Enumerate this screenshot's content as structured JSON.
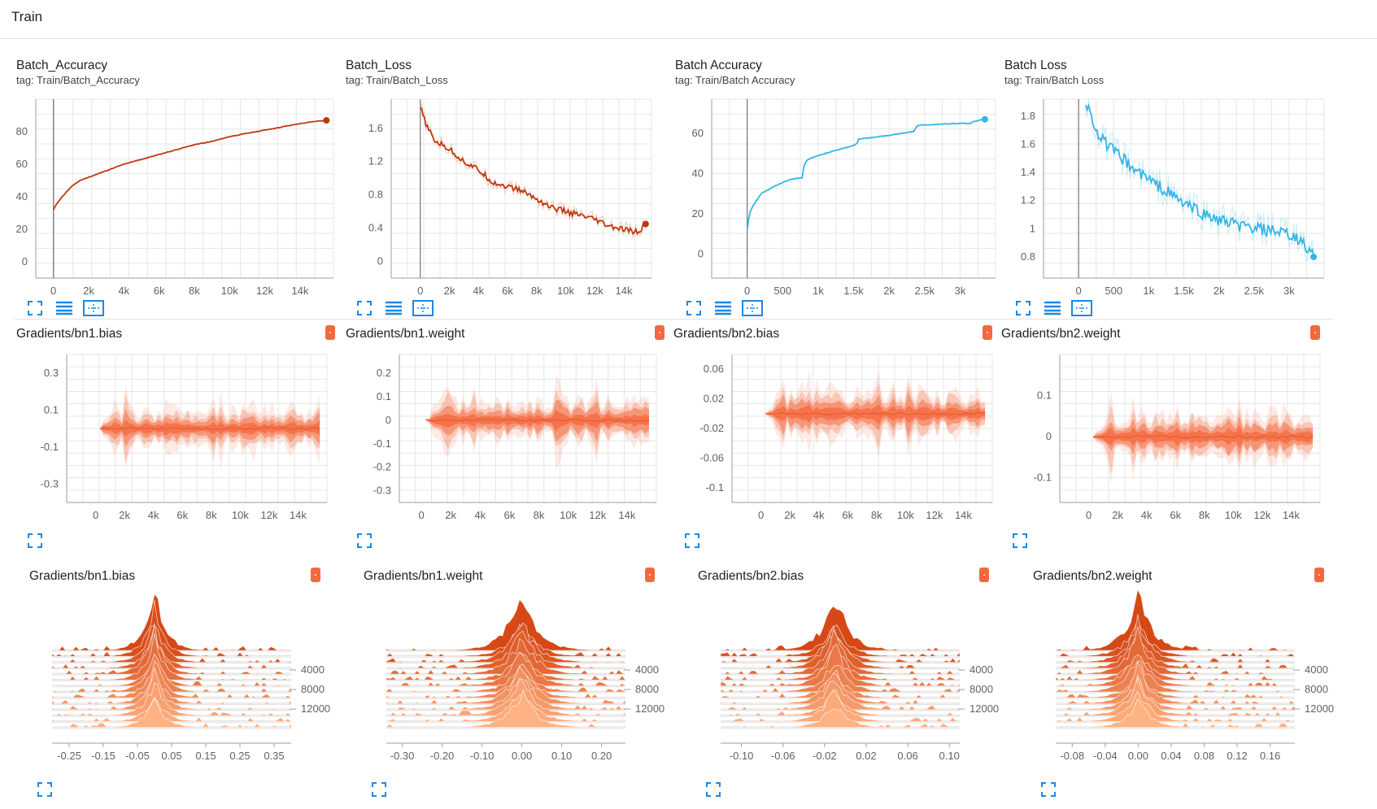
{
  "page": {
    "title": "Train"
  },
  "colors": {
    "accent": "#1e88e5",
    "scalar_orange": "#c0360c",
    "scalar_blue": "#33b5e5",
    "hist": "#f4683e"
  },
  "chart_data": [
    {
      "type": "line",
      "title": "Batch_Accuracy",
      "tag": "tag: Train/Batch_Accuracy",
      "xlim": [
        -1000,
        15900
      ],
      "ylim": [
        -10,
        100
      ],
      "xticks": [
        0,
        2000,
        4000,
        6000,
        8000,
        10000,
        12000,
        14000
      ],
      "xtick_labels": [
        "0",
        "2k",
        "4k",
        "6k",
        "8k",
        "10k",
        "12k",
        "14k"
      ],
      "yticks": [
        0,
        20,
        40,
        60,
        80
      ],
      "ytick_labels": [
        "0",
        "20",
        "40",
        "60",
        "80"
      ],
      "color": "#c0360c",
      "x": [
        0,
        200,
        500,
        1000,
        1500,
        2000,
        3000,
        4000,
        5000,
        6000,
        7000,
        8000,
        9000,
        10000,
        11000,
        12000,
        13000,
        14000,
        15000,
        15500
      ],
      "y": [
        32,
        36,
        40,
        46,
        50,
        52,
        56,
        60,
        63,
        66,
        69,
        72,
        74,
        77,
        79,
        81,
        83,
        85,
        86.5,
        87
      ]
    },
    {
      "type": "line",
      "title": "Batch_Loss",
      "tag": "tag: Train/Batch_Loss",
      "xlim": [
        -2000,
        15900
      ],
      "ylim": [
        -0.2,
        1.95
      ],
      "xticks": [
        0,
        2000,
        4000,
        6000,
        8000,
        10000,
        12000,
        14000
      ],
      "xtick_labels": [
        "0",
        "2k",
        "4k",
        "6k",
        "8k",
        "10k",
        "12k",
        "14k"
      ],
      "yticks": [
        0,
        0.4,
        0.8,
        1.2,
        1.6
      ],
      "ytick_labels": [
        "0",
        "0.4",
        "0.8",
        "1.2",
        "1.6"
      ],
      "color": "#c0360c",
      "x": [
        0,
        500,
        1000,
        2000,
        3000,
        4000,
        5000,
        6000,
        7000,
        8000,
        9000,
        10000,
        11000,
        12000,
        13000,
        14000,
        15000,
        15500
      ],
      "y": [
        1.85,
        1.6,
        1.45,
        1.35,
        1.2,
        1.1,
        0.95,
        0.9,
        0.85,
        0.75,
        0.65,
        0.6,
        0.55,
        0.5,
        0.42,
        0.38,
        0.35,
        0.45
      ]
    },
    {
      "type": "line",
      "title": "Batch Accuracy",
      "tag": "tag: Train/Batch Accuracy",
      "xlim": [
        -500,
        3500
      ],
      "ylim": [
        -12,
        77
      ],
      "xticks": [
        0,
        500,
        1000,
        1500,
        2000,
        2500,
        3000
      ],
      "xtick_labels": [
        "0",
        "500",
        "1k",
        "1.5k",
        "2k",
        "2.5k",
        "3k"
      ],
      "yticks": [
        0,
        20,
        40,
        60
      ],
      "ytick_labels": [
        "0",
        "20",
        "40",
        "60"
      ],
      "color": "#33b5e5",
      "x": [
        0,
        30,
        100,
        200,
        400,
        600,
        780,
        800,
        850,
        1000,
        1200,
        1500,
        1550,
        1560,
        2000,
        2350,
        2360,
        2400,
        3000,
        3150,
        3200,
        3350
      ],
      "y": [
        12,
        20,
        25,
        30,
        34,
        37,
        38,
        44,
        47,
        49,
        51,
        54,
        55,
        57,
        59,
        61,
        62,
        64,
        65,
        65,
        66,
        67
      ]
    },
    {
      "type": "line",
      "title": "Batch Loss",
      "tag": "tag: Train/Batch Loss",
      "xlim": [
        -500,
        3500
      ],
      "ylim": [
        0.65,
        1.92
      ],
      "xticks": [
        0,
        500,
        1000,
        1500,
        2000,
        2500,
        3000
      ],
      "xtick_labels": [
        "0",
        "500",
        "1k",
        "1.5k",
        "2k",
        "2.5k",
        "3k"
      ],
      "yticks": [
        0.8,
        1,
        1.2,
        1.4,
        1.6,
        1.8
      ],
      "ytick_labels": [
        "0.8",
        "1",
        "1.2",
        "1.4",
        "1.6",
        "1.8"
      ],
      "color": "#33b5e5",
      "x": [
        100,
        300,
        500,
        800,
        1000,
        1300,
        1500,
        1800,
        2000,
        2300,
        2500,
        2800,
        3000,
        3200,
        3350
      ],
      "y": [
        1.9,
        1.65,
        1.55,
        1.42,
        1.35,
        1.25,
        1.18,
        1.1,
        1.06,
        1.02,
        1.0,
        0.98,
        0.95,
        0.9,
        0.8
      ]
    },
    {
      "type": "area",
      "title": "Gradients/bn1.bias",
      "xlim": [
        -2000,
        16000
      ],
      "ylim": [
        -0.4,
        0.4
      ],
      "xticks": [
        0,
        2000,
        4000,
        6000,
        8000,
        10000,
        12000,
        14000
      ],
      "xtick_labels": [
        "0",
        "2k",
        "4k",
        "6k",
        "8k",
        "10k",
        "12k",
        "14k"
      ],
      "yticks": [
        0.3,
        0.1,
        -0.1,
        -0.3
      ],
      "ytick_labels": [
        "0.3",
        "0.1",
        "-0.1",
        "-0.3"
      ],
      "color": "#f4683e",
      "xstart": 300,
      "xend": 15500,
      "spread": 0.1
    },
    {
      "type": "area",
      "title": "Gradients/bn1.weight",
      "xlim": [
        -1500,
        16000
      ],
      "ylim": [
        -0.35,
        0.28
      ],
      "xticks": [
        0,
        2000,
        4000,
        6000,
        8000,
        10000,
        12000,
        14000
      ],
      "xtick_labels": [
        "0",
        "2k",
        "4k",
        "6k",
        "8k",
        "10k",
        "12k",
        "14k"
      ],
      "yticks": [
        0.2,
        0.1,
        0,
        -0.1,
        -0.2,
        -0.3
      ],
      "ytick_labels": [
        "0.2",
        "0.1",
        "0",
        "-0.1",
        "-0.2",
        "-0.3"
      ],
      "color": "#f4683e",
      "xstart": 300,
      "xend": 15500,
      "spread": 0.08
    },
    {
      "type": "area",
      "title": "Gradients/bn2.bias",
      "xlim": [
        -2000,
        16000
      ],
      "ylim": [
        -0.12,
        0.08
      ],
      "xticks": [
        0,
        2000,
        4000,
        6000,
        8000,
        10000,
        12000,
        14000
      ],
      "xtick_labels": [
        "0",
        "2k",
        "4k",
        "6k",
        "8k",
        "10k",
        "12k",
        "14k"
      ],
      "yticks": [
        0.06,
        0.02,
        -0.02,
        -0.06,
        -0.1
      ],
      "ytick_labels": [
        "0.06",
        "0.02",
        "-0.02",
        "-0.06",
        "-0.1"
      ],
      "color": "#f4683e",
      "xstart": 300,
      "xend": 15500,
      "spread": 0.025
    },
    {
      "type": "area",
      "title": "Gradients/bn2.weight",
      "xlim": [
        -2000,
        16000
      ],
      "ylim": [
        -0.16,
        0.2
      ],
      "xticks": [
        0,
        2000,
        4000,
        6000,
        8000,
        10000,
        12000,
        14000
      ],
      "xtick_labels": [
        "0",
        "2k",
        "4k",
        "6k",
        "8k",
        "10k",
        "12k",
        "14k"
      ],
      "yticks": [
        0.1,
        0,
        -0.1
      ],
      "ytick_labels": [
        "0.1",
        "0",
        "-0.1"
      ],
      "color": "#f4683e",
      "xstart": 300,
      "xend": 15500,
      "spread": 0.05
    },
    {
      "type": "histogram",
      "title": "Gradients/bn1.bias",
      "xlim": [
        -0.3,
        0.4
      ],
      "xtick_labels": [
        "-0.25",
        "-0.15",
        "-0.05",
        "0.05",
        "0.15",
        "0.25",
        "0.35"
      ],
      "xticks": [
        -0.25,
        -0.15,
        -0.05,
        0.05,
        0.15,
        0.25,
        0.35
      ],
      "steps": [
        "4000",
        "8000",
        "12000"
      ],
      "center": 0.0,
      "width": 0.05
    },
    {
      "type": "histogram",
      "title": "Gradients/bn1.weight",
      "xlim": [
        -0.34,
        0.26
      ],
      "xtick_labels": [
        "-0.30",
        "-0.20",
        "-0.10",
        "0.00",
        "0.10",
        "0.20"
      ],
      "xticks": [
        -0.3,
        -0.2,
        -0.1,
        0.0,
        0.1,
        0.2
      ],
      "steps": [
        "4000",
        "8000",
        "12000"
      ],
      "center": 0.0,
      "width": 0.06
    },
    {
      "type": "histogram",
      "title": "Gradients/bn2.bias",
      "xlim": [
        -0.12,
        0.11
      ],
      "xtick_labels": [
        "-0.10",
        "-0.06",
        "-0.02",
        "0.02",
        "0.06",
        "0.10"
      ],
      "xticks": [
        -0.1,
        -0.06,
        -0.02,
        0.02,
        0.06,
        0.1
      ],
      "steps": [
        "4000",
        "8000",
        "12000"
      ],
      "center": -0.01,
      "width": 0.02
    },
    {
      "type": "histogram",
      "title": "Gradients/bn2.weight",
      "xlim": [
        -0.1,
        0.19
      ],
      "xtick_labels": [
        "-0.08",
        "-0.04",
        "0.00",
        "0.04",
        "0.08",
        "0.12",
        "0.16"
      ],
      "xticks": [
        -0.08,
        -0.04,
        0.0,
        0.04,
        0.08,
        0.12,
        0.16
      ],
      "steps": [
        "4000",
        "8000",
        "12000"
      ],
      "center": 0.0,
      "width": 0.025
    }
  ]
}
